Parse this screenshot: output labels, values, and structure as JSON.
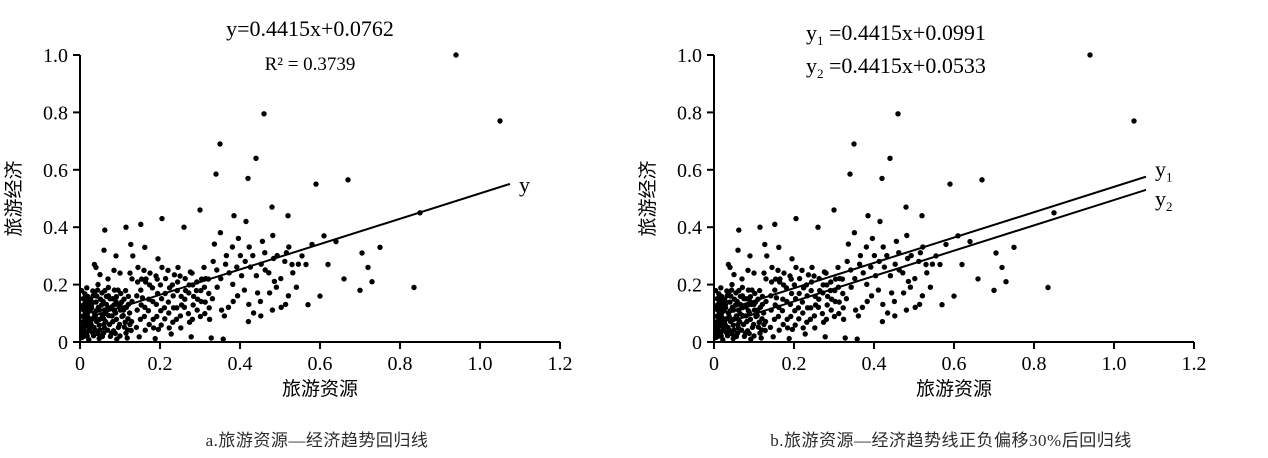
{
  "accent_color": "#000000",
  "caption_color": "#2b2b2b",
  "chart_data": {
    "type": "scatter",
    "xlabel": "旅游资源",
    "ylabel": "旅游经济",
    "xlim": [
      0,
      1.2
    ],
    "ylim": [
      0,
      1.0
    ],
    "xticks": [
      "0",
      "0.2",
      "0.4",
      "0.6",
      "0.8",
      "1.0",
      "1.2"
    ],
    "yticks": [
      "0",
      "0.2",
      "0.4",
      "0.6",
      "0.8",
      "1.0"
    ],
    "grid": false,
    "point_color": "#000000",
    "line_color": "#000000",
    "charts": [
      {
        "id": "a",
        "caption": "a.旅游资源—经济趋势回归线",
        "equations": [
          {
            "base": "y",
            "sub": "",
            "rest": "=0.4415x+0.0762"
          },
          {
            "base": "R²",
            "sub": "",
            "rest": " = 0.3739"
          }
        ],
        "trend_lines": [
          {
            "label": "y",
            "sub": "",
            "slope": 0.4415,
            "intercept": 0.0762,
            "x_start": 0.03,
            "x_end": 1.075
          }
        ]
      },
      {
        "id": "b",
        "caption": "b.旅游资源—经济趋势线正负偏移30%后回归线",
        "equations": [
          {
            "base": "y",
            "sub": "1",
            "rest": " =0.4415x+0.0991"
          },
          {
            "base": "y",
            "sub": "2",
            "rest": " =0.4415x+0.0533"
          }
        ],
        "trend_lines": [
          {
            "label": "y",
            "sub": "1",
            "slope": 0.4415,
            "intercept": 0.0991,
            "x_start": 0.05,
            "x_end": 1.08
          },
          {
            "label": "y",
            "sub": "2",
            "slope": 0.4415,
            "intercept": 0.0533,
            "x_start": 0.05,
            "x_end": 1.08
          }
        ]
      }
    ],
    "points": [
      [
        0.01,
        0.02
      ],
      [
        0.022,
        0.052
      ],
      [
        0.006,
        0.09
      ],
      [
        0.031,
        0.033
      ],
      [
        0.015,
        0.118
      ],
      [
        0.041,
        0.072
      ],
      [
        0.008,
        0.151
      ],
      [
        0.052,
        0.021
      ],
      [
        0.019,
        0.101
      ],
      [
        0.061,
        0.049
      ],
      [
        0.012,
        0.168
      ],
      [
        0.072,
        0.092
      ],
      [
        0.029,
        0.131
      ],
      [
        0.088,
        0.03
      ],
      [
        0.005,
        0.052
      ],
      [
        0.042,
        0.16
      ],
      [
        0.079,
        0.122
      ],
      [
        0.021,
        0.072
      ],
      [
        0.099,
        0.061
      ],
      [
        0.058,
        0.141
      ],
      [
        0.011,
        0.04
      ],
      [
        0.049,
        0.111
      ],
      [
        0.108,
        0.092
      ],
      [
        0.032,
        0.178
      ],
      [
        0.069,
        0.041
      ],
      [
        0.121,
        0.131
      ],
      [
        0.018,
        0.021
      ],
      [
        0.091,
        0.158
      ],
      [
        0.038,
        0.089
      ],
      [
        0.007,
        0.121
      ],
      [
        0.082,
        0.071
      ],
      [
        0.013,
        0.082
      ],
      [
        0.062,
        0.179
      ],
      [
        0.101,
        0.111
      ],
      [
        0.028,
        0.06
      ],
      [
        0.119,
        0.042
      ],
      [
        0.051,
        0.149
      ],
      [
        0.023,
        0.132
      ],
      [
        0.071,
        0.19
      ],
      [
        0.111,
        0.052
      ],
      [
        0.009,
        0.111
      ],
      [
        0.039,
        0.04
      ],
      [
        0.089,
        0.101
      ],
      [
        0.033,
        0.161
      ],
      [
        0.059,
        0.081
      ],
      [
        0.129,
        0.071
      ],
      [
        0.017,
        0.189
      ],
      [
        0.081,
        0.151
      ],
      [
        0.048,
        0.059
      ],
      [
        0.102,
        0.169
      ],
      [
        0.016,
        0.062
      ],
      [
        0.046,
        0.121
      ],
      [
        0.076,
        0.02
      ],
      [
        0.026,
        0.149
      ],
      [
        0.056,
        0.091
      ],
      [
        0.096,
        0.051
      ],
      [
        0.036,
        0.101
      ],
      [
        0.066,
        0.159
      ],
      [
        0.116,
        0.121
      ],
      [
        0.086,
        0.181
      ],
      [
        0.006,
        0.031
      ],
      [
        0.031,
        0.081
      ],
      [
        0.061,
        0.111
      ],
      [
        0.091,
        0.079
      ],
      [
        0.121,
        0.159
      ],
      [
        0.014,
        0.141
      ],
      [
        0.044,
        0.181
      ],
      [
        0.074,
        0.061
      ],
      [
        0.104,
        0.139
      ],
      [
        0.024,
        0.041
      ],
      [
        0.054,
        0.129
      ],
      [
        0.084,
        0.039
      ],
      [
        0.114,
        0.179
      ],
      [
        0.034,
        0.022
      ],
      [
        0.064,
        0.071
      ],
      [
        0.094,
        0.131
      ],
      [
        0.124,
        0.101
      ],
      [
        0.004,
        0.179
      ],
      [
        0.029,
        0.119
      ],
      [
        0.059,
        0.031
      ],
      [
        0.01,
        0.066
      ],
      [
        0.04,
        0.139
      ],
      [
        0.07,
        0.119
      ],
      [
        0.1,
        0.021
      ],
      [
        0.13,
        0.141
      ],
      [
        0.02,
        0.086
      ],
      [
        0.05,
        0.042
      ],
      [
        0.08,
        0.091
      ],
      [
        0.11,
        0.149
      ],
      [
        0.025,
        0.109
      ],
      [
        0.055,
        0.171
      ],
      [
        0.085,
        0.129
      ],
      [
        0.115,
        0.031
      ],
      [
        0.035,
        0.051
      ],
      [
        0.065,
        0.099
      ],
      [
        0.095,
        0.181
      ],
      [
        0.125,
        0.061
      ],
      [
        0.015,
        0.091
      ],
      [
        0.045,
        0.029
      ],
      [
        0.075,
        0.151
      ],
      [
        0.105,
        0.089
      ],
      [
        0.019,
        0.159
      ],
      [
        0.049,
        0.079
      ],
      [
        0.079,
        0.031
      ],
      [
        0.109,
        0.111
      ],
      [
        0.03,
        0.139
      ],
      [
        0.06,
        0.061
      ],
      [
        0.09,
        0.141
      ],
      [
        0.12,
        0.081
      ],
      [
        0.011,
        0.129
      ],
      [
        0.041,
        0.109
      ],
      [
        0.071,
        0.161
      ],
      [
        0.1,
        0.131
      ],
      [
        0.128,
        0.04
      ],
      [
        0.026,
        0.069
      ],
      [
        0.056,
        0.019
      ],
      [
        0.086,
        0.109
      ],
      [
        0.113,
        0.069
      ],
      [
        0.036,
        0.169
      ],
      [
        0.066,
        0.131
      ],
      [
        0.008,
        0.04
      ],
      [
        0.012,
        0.06
      ],
      [
        0.018,
        0.035
      ],
      [
        0.006,
        0.07
      ],
      [
        0.014,
        0.1
      ],
      [
        0.009,
        0.13
      ],
      [
        0.016,
        0.145
      ],
      [
        0.004,
        0.015
      ],
      [
        0.011,
        0.055
      ],
      [
        0.02,
        0.12
      ],
      [
        0.141,
        0.051
      ],
      [
        0.162,
        0.121
      ],
      [
        0.183,
        0.079
      ],
      [
        0.204,
        0.151
      ],
      [
        0.222,
        0.101
      ],
      [
        0.243,
        0.179
      ],
      [
        0.261,
        0.121
      ],
      [
        0.282,
        0.199
      ],
      [
        0.303,
        0.141
      ],
      [
        0.321,
        0.219
      ],
      [
        0.152,
        0.181
      ],
      [
        0.173,
        0.061
      ],
      [
        0.191,
        0.131
      ],
      [
        0.212,
        0.081
      ],
      [
        0.233,
        0.161
      ],
      [
        0.251,
        0.091
      ],
      [
        0.272,
        0.171
      ],
      [
        0.293,
        0.111
      ],
      [
        0.311,
        0.191
      ],
      [
        0.143,
        0.111
      ],
      [
        0.164,
        0.209
      ],
      [
        0.182,
        0.141
      ],
      [
        0.203,
        0.059
      ],
      [
        0.224,
        0.189
      ],
      [
        0.242,
        0.119
      ],
      [
        0.263,
        0.221
      ],
      [
        0.281,
        0.079
      ],
      [
        0.302,
        0.179
      ],
      [
        0.323,
        0.119
      ],
      [
        0.151,
        0.079
      ],
      [
        0.172,
        0.149
      ],
      [
        0.193,
        0.219
      ],
      [
        0.211,
        0.119
      ],
      [
        0.232,
        0.069
      ],
      [
        0.253,
        0.159
      ],
      [
        0.271,
        0.099
      ],
      [
        0.292,
        0.209
      ],
      [
        0.313,
        0.139
      ],
      [
        0.142,
        0.161
      ],
      [
        0.163,
        0.041
      ],
      [
        0.181,
        0.189
      ],
      [
        0.202,
        0.109
      ],
      [
        0.223,
        0.049
      ],
      [
        0.244,
        0.209
      ],
      [
        0.262,
        0.149
      ],
      [
        0.283,
        0.129
      ],
      [
        0.301,
        0.089
      ],
      [
        0.322,
        0.169
      ],
      [
        0.153,
        0.129
      ],
      [
        0.174,
        0.199
      ],
      [
        0.192,
        0.089
      ],
      [
        0.213,
        0.169
      ],
      [
        0.234,
        0.119
      ],
      [
        0.252,
        0.049
      ],
      [
        0.273,
        0.199
      ],
      [
        0.294,
        0.149
      ],
      [
        0.312,
        0.099
      ],
      [
        0.144,
        0.209
      ],
      [
        0.161,
        0.089
      ],
      [
        0.184,
        0.049
      ],
      [
        0.201,
        0.199
      ],
      [
        0.221,
        0.139
      ],
      [
        0.241,
        0.079
      ],
      [
        0.264,
        0.179
      ],
      [
        0.284,
        0.159
      ],
      [
        0.304,
        0.219
      ],
      [
        0.324,
        0.079
      ],
      [
        0.154,
        0.219
      ],
      [
        0.171,
        0.109
      ],
      [
        0.194,
        0.169
      ],
      [
        0.214,
        0.221
      ],
      [
        0.231,
        0.199
      ],
      [
        0.254,
        0.129
      ],
      [
        0.274,
        0.069
      ],
      [
        0.291,
        0.179
      ],
      [
        0.314,
        0.221
      ],
      [
        0.156,
        0.154
      ],
      [
        0.236,
        0.234
      ],
      [
        0.196,
        0.044
      ],
      [
        0.276,
        0.244
      ],
      [
        0.331,
        0.151
      ],
      [
        0.352,
        0.221
      ],
      [
        0.371,
        0.121
      ],
      [
        0.392,
        0.261
      ],
      [
        0.411,
        0.181
      ],
      [
        0.432,
        0.301
      ],
      [
        0.451,
        0.141
      ],
      [
        0.472,
        0.241
      ],
      [
        0.491,
        0.191
      ],
      [
        0.512,
        0.281
      ],
      [
        0.342,
        0.251
      ],
      [
        0.361,
        0.091
      ],
      [
        0.382,
        0.201
      ],
      [
        0.401,
        0.301
      ],
      [
        0.422,
        0.131
      ],
      [
        0.441,
        0.231
      ],
      [
        0.462,
        0.311
      ],
      [
        0.481,
        0.111
      ],
      [
        0.502,
        0.221
      ],
      [
        0.521,
        0.161
      ],
      [
        0.333,
        0.281
      ],
      [
        0.354,
        0.111
      ],
      [
        0.373,
        0.241
      ],
      [
        0.394,
        0.161
      ],
      [
        0.413,
        0.281
      ],
      [
        0.434,
        0.101
      ],
      [
        0.453,
        0.271
      ],
      [
        0.474,
        0.171
      ],
      [
        0.493,
        0.301
      ],
      [
        0.514,
        0.131
      ],
      [
        0.343,
        0.191
      ],
      [
        0.364,
        0.271
      ],
      [
        0.383,
        0.141
      ],
      [
        0.404,
        0.231
      ],
      [
        0.423,
        0.331
      ],
      [
        0.444,
        0.171
      ],
      [
        0.463,
        0.251
      ],
      [
        0.484,
        0.291
      ],
      [
        0.503,
        0.121
      ],
      [
        0.532,
        0.241
      ],
      [
        0.336,
        0.341
      ],
      [
        0.366,
        0.301
      ],
      [
        0.396,
        0.361
      ],
      [
        0.426,
        0.261
      ],
      [
        0.456,
        0.351
      ],
      [
        0.486,
        0.211
      ],
      [
        0.516,
        0.311
      ],
      [
        0.546,
        0.271
      ],
      [
        0.351,
        0.381
      ],
      [
        0.452,
        0.091
      ],
      [
        0.541,
        0.191
      ],
      [
        0.522,
        0.331
      ],
      [
        0.381,
        0.331
      ],
      [
        0.421,
        0.071
      ],
      [
        0.482,
        0.371
      ],
      [
        0.555,
        0.3
      ],
      [
        0.565,
        0.27
      ],
      [
        0.58,
        0.34
      ],
      [
        0.61,
        0.37
      ],
      [
        0.53,
        0.27
      ],
      [
        0.6,
        0.16
      ],
      [
        0.62,
        0.27
      ],
      [
        0.64,
        0.35
      ],
      [
        0.66,
        0.22
      ],
      [
        0.705,
        0.31
      ],
      [
        0.7,
        0.18
      ],
      [
        0.72,
        0.26
      ],
      [
        0.75,
        0.33
      ],
      [
        0.57,
        0.13
      ],
      [
        0.73,
        0.21
      ],
      [
        0.148,
        0.018
      ],
      [
        0.188,
        0.012
      ],
      [
        0.228,
        0.028
      ],
      [
        0.278,
        0.018
      ],
      [
        0.328,
        0.014
      ],
      [
        0.358,
        0.01
      ],
      [
        0.118,
        0.014
      ],
      [
        0.092,
        0.01
      ],
      [
        0.048,
        0.012
      ],
      [
        0.022,
        0.008
      ],
      [
        0.062,
        0.39
      ],
      [
        0.115,
        0.4
      ],
      [
        0.152,
        0.41
      ],
      [
        0.06,
        0.32
      ],
      [
        0.127,
        0.34
      ],
      [
        0.04,
        0.26
      ],
      [
        0.162,
        0.33
      ],
      [
        0.195,
        0.29
      ],
      [
        0.09,
        0.3
      ],
      [
        0.145,
        0.26
      ],
      [
        0.175,
        0.24
      ],
      [
        0.05,
        0.235
      ],
      [
        0.07,
        0.22
      ],
      [
        0.1,
        0.24
      ],
      [
        0.13,
        0.22
      ],
      [
        0.16,
        0.25
      ],
      [
        0.19,
        0.23
      ],
      [
        0.22,
        0.25
      ],
      [
        0.25,
        0.23
      ],
      [
        0.28,
        0.24
      ],
      [
        0.31,
        0.26
      ],
      [
        0.045,
        0.2
      ],
      [
        0.085,
        0.25
      ],
      [
        0.125,
        0.24
      ],
      [
        0.165,
        0.22
      ],
      [
        0.205,
        0.26
      ],
      [
        0.245,
        0.26
      ],
      [
        0.94,
        1.0
      ],
      [
        1.05,
        0.77
      ],
      [
        0.46,
        0.795
      ],
      [
        0.35,
        0.69
      ],
      [
        0.44,
        0.64
      ],
      [
        0.34,
        0.585
      ],
      [
        0.42,
        0.57
      ],
      [
        0.59,
        0.55
      ],
      [
        0.67,
        0.565
      ],
      [
        0.85,
        0.45
      ],
      [
        0.835,
        0.19
      ],
      [
        0.415,
        0.42
      ],
      [
        0.036,
        0.27
      ],
      [
        0.132,
        0.3
      ],
      [
        0.205,
        0.43
      ],
      [
        0.3,
        0.46
      ],
      [
        0.26,
        0.4
      ],
      [
        0.48,
        0.47
      ],
      [
        0.52,
        0.44
      ],
      [
        0.385,
        0.44
      ]
    ]
  }
}
